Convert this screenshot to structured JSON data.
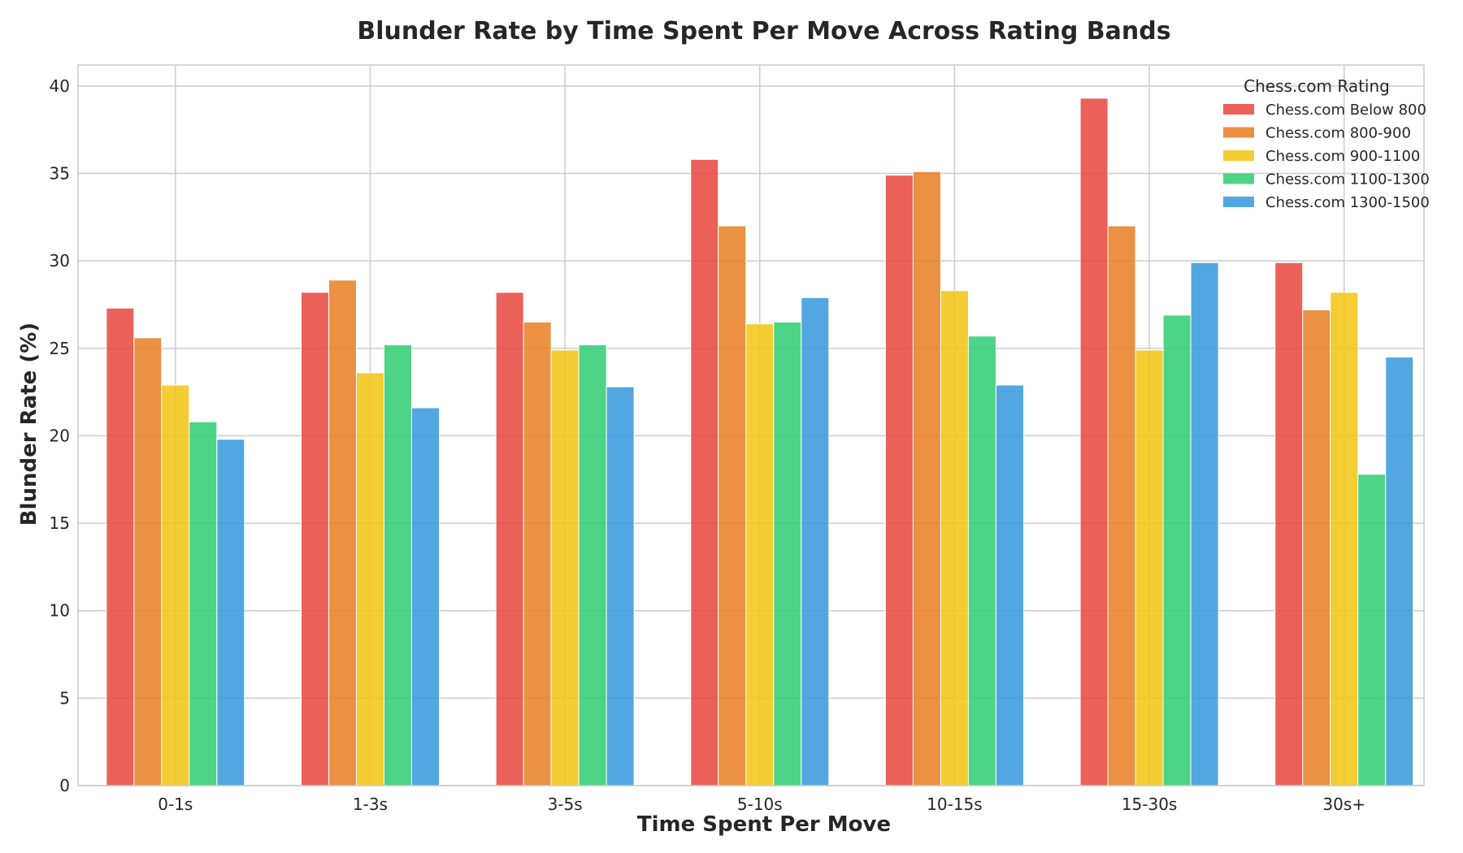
{
  "chart_data": {
    "type": "bar",
    "title": "Blunder Rate by Time Spent Per Move Across Rating Bands",
    "xlabel": "Time Spent Per Move",
    "ylabel": "Blunder Rate (%)",
    "ylim": [
      0,
      41.2
    ],
    "yticks": [
      0,
      5,
      10,
      15,
      20,
      25,
      30,
      35,
      40
    ],
    "categories": [
      "0-1s",
      "1-3s",
      "3-5s",
      "5-10s",
      "10-15s",
      "15-30s",
      "30s+"
    ],
    "grid": true,
    "legend": {
      "title": "Chess.com Rating",
      "placement": "top-right"
    },
    "series": [
      {
        "name": "Chess.com Below 800",
        "color": "#e8453c",
        "values": [
          27.3,
          28.2,
          28.2,
          35.8,
          34.9,
          39.3,
          29.9
        ]
      },
      {
        "name": "Chess.com 800-900",
        "color": "#e67e22",
        "values": [
          25.6,
          28.9,
          26.5,
          32.0,
          35.1,
          32.0,
          27.2
        ]
      },
      {
        "name": "Chess.com 900-1100",
        "color": "#f1c40f",
        "values": [
          22.9,
          23.6,
          24.9,
          26.4,
          28.3,
          24.9,
          28.2
        ]
      },
      {
        "name": "Chess.com 1100-1300",
        "color": "#2ecc71",
        "values": [
          20.8,
          25.2,
          25.2,
          26.5,
          25.7,
          26.9,
          17.8
        ]
      },
      {
        "name": "Chess.com 1300-1500",
        "color": "#3498db",
        "values": [
          19.8,
          21.6,
          22.8,
          27.9,
          22.9,
          29.9,
          24.5
        ]
      }
    ]
  }
}
